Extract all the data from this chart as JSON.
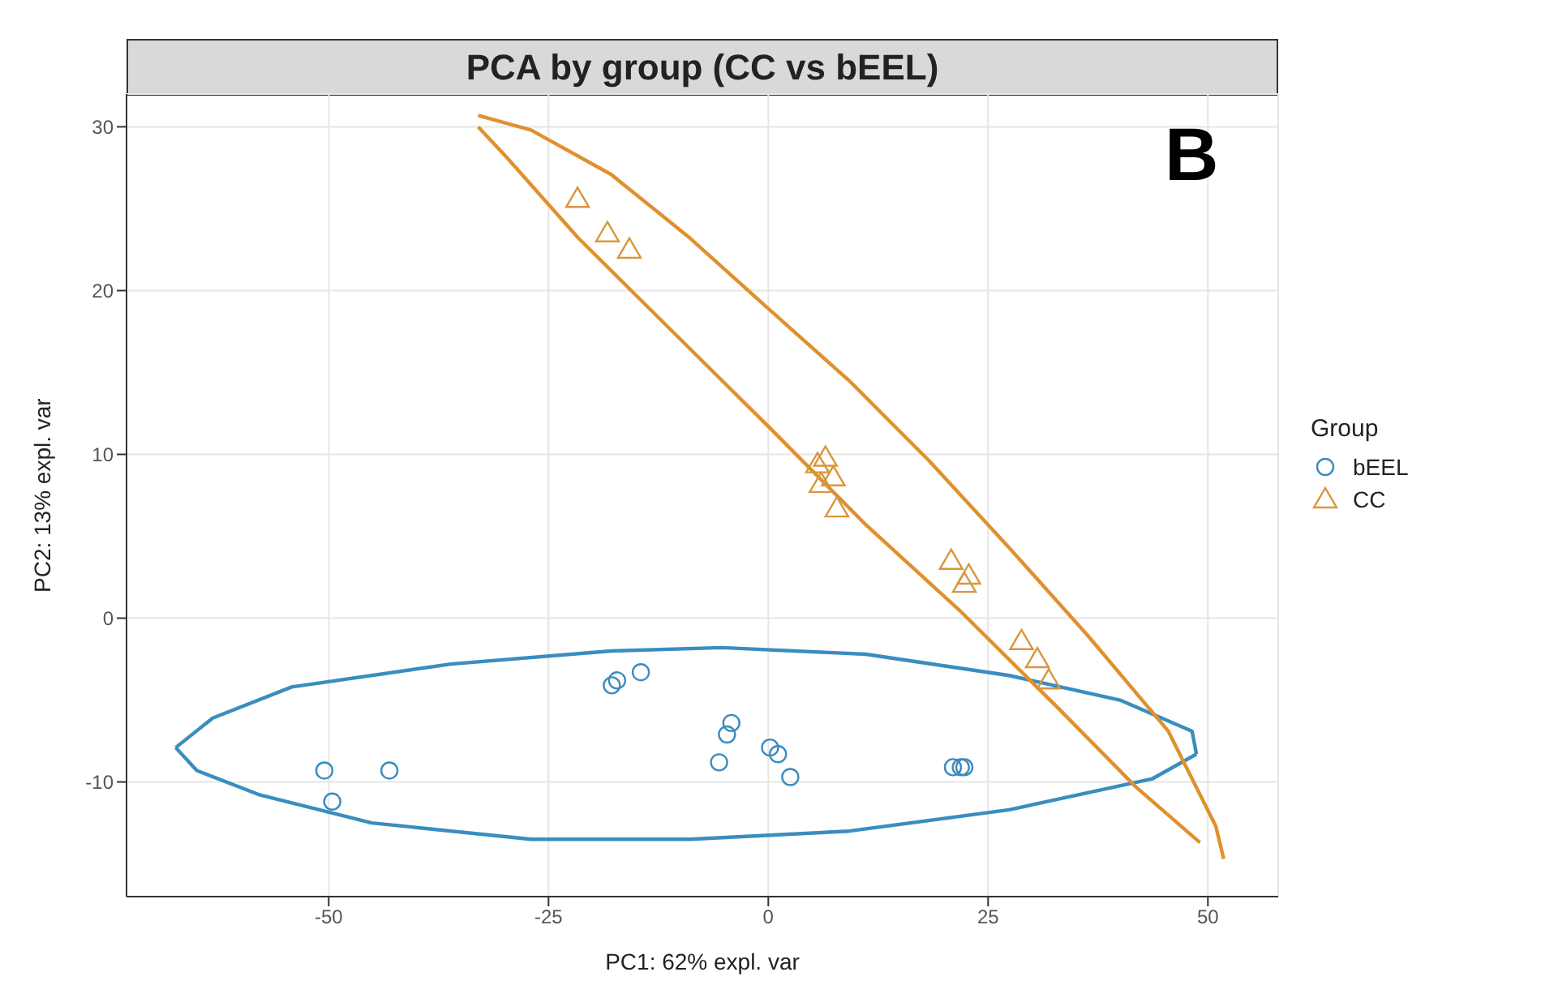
{
  "chart_data": {
    "type": "scatter",
    "title": "PCA by group (CC vs bEEL)",
    "xlabel": "PC1: 62% expl. var",
    "ylabel": "PC2: 13% expl. var",
    "legend_title": "Group",
    "legend": "right",
    "grid": true,
    "annotations": [
      "B"
    ],
    "xlim": [
      -73,
      58
    ],
    "ylim": [
      -17,
      32
    ],
    "xticks": [
      -50,
      -25,
      0,
      25,
      50
    ],
    "yticks": [
      -10,
      0,
      10,
      20,
      30
    ],
    "series": [
      {
        "type": "line",
        "color": "#3a8dbf",
        "x": [
          -67.4,
          -63.2,
          -54.2,
          -36.1,
          -17.9,
          -5.3,
          11.1,
          27.4,
          40.0,
          48.2,
          48.7
        ],
        "values": [
          -7.9,
          -6.1,
          -4.2,
          -2.8,
          -2.0,
          -1.8,
          -2.2,
          -3.5,
          -5.0,
          -6.9,
          -8.3
        ]
      },
      {
        "type": "line",
        "color": "#3a8dbf",
        "x": [
          -67.4,
          -65.0,
          -57.8,
          -45.1,
          -27.0,
          -8.9,
          9.2,
          27.4,
          43.7,
          48.7
        ],
        "values": [
          -7.9,
          -9.3,
          -10.8,
          -12.5,
          -13.5,
          -13.5,
          -13.0,
          -11.7,
          -9.8,
          -8.3
        ]
      },
      {
        "type": "line",
        "color": "#e0902d",
        "x": [
          -33.0,
          -27.0,
          -17.9,
          -8.9,
          0.2,
          9.2,
          18.3,
          27.4,
          36.4,
          45.5,
          50.9,
          51.8
        ],
        "values": [
          30.7,
          29.8,
          27.1,
          23.2,
          18.8,
          14.5,
          9.6,
          4.3,
          -1.1,
          -6.9,
          -12.7,
          -14.7
        ]
      },
      {
        "type": "line",
        "color": "#e0902d",
        "x": [
          -33.0,
          -29.7,
          -21.6,
          -10.7,
          0.2,
          11.1,
          21.9,
          32.8,
          41.8,
          49.1
        ],
        "values": [
          30.0,
          28.1,
          23.2,
          17.4,
          11.6,
          5.7,
          0.4,
          -5.4,
          -10.3,
          -13.7
        ]
      },
      {
        "name": "bEEL",
        "marker": "circle",
        "color": "#3a8dbf",
        "x": [
          -50.5,
          -49.6,
          -43.1,
          -17.8,
          -17.2,
          -14.5,
          -5.6,
          -4.7,
          -4.2,
          0.2,
          1.1,
          2.5,
          21.0,
          21.9,
          22.3
        ],
        "values": [
          -9.3,
          -11.2,
          -9.3,
          -4.1,
          -3.8,
          -3.3,
          -8.8,
          -7.1,
          -6.4,
          -7.9,
          -8.3,
          -9.7,
          -9.1,
          -9.1,
          -9.1
        ]
      },
      {
        "name": "CC",
        "marker": "triangle",
        "color": "#d9963b",
        "x": [
          -21.7,
          -18.3,
          -15.8,
          5.6,
          6.5,
          6.0,
          7.4,
          7.8,
          20.8,
          22.8,
          22.3,
          28.8,
          30.6,
          31.9
        ],
        "values": [
          25.6,
          23.5,
          22.5,
          9.4,
          9.8,
          8.2,
          8.6,
          6.7,
          3.5,
          2.6,
          2.1,
          -1.4,
          -2.5,
          -3.8
        ]
      }
    ]
  }
}
